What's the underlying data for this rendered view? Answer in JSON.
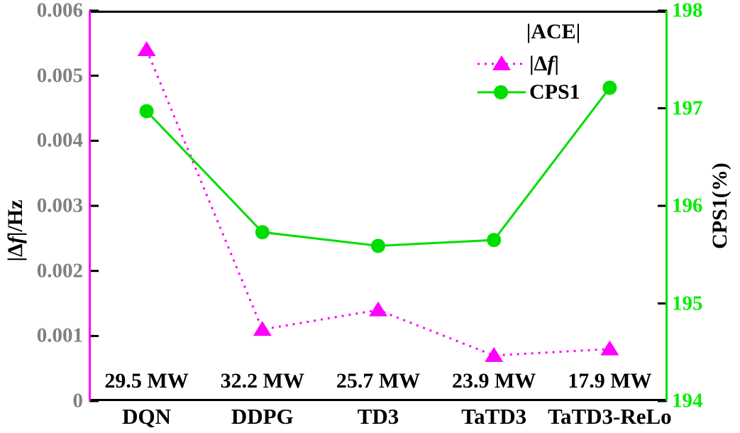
{
  "colors": {
    "magenta": "#ff00ff",
    "green_line": "#00dd00",
    "green_tick_text": "#00ee00",
    "gray_tick_text": "#808080",
    "black": "#000000",
    "background": "#ffffff"
  },
  "left_axis": {
    "title": {
      "pre": "|Δ",
      "italic": "f",
      "post": "|/Hz"
    },
    "min": 0,
    "max": 0.006,
    "tick_values": [
      0,
      0.001,
      0.002,
      0.003,
      0.004,
      0.005,
      0.006
    ],
    "tick_labels": [
      "0",
      "0.001",
      "0.002",
      "0.003",
      "0.004",
      "0.005",
      "0.006"
    ]
  },
  "right_axis": {
    "title": "CPS1(%)",
    "min": 194,
    "max": 198,
    "tick_values": [
      194,
      195,
      196,
      197,
      198
    ],
    "tick_labels": [
      "194",
      "195",
      "196",
      "197",
      "198"
    ]
  },
  "legend": {
    "title": "|ACE|",
    "entry_delta_f": {
      "pre": "|Δ",
      "italic": "f",
      "post": "|"
    },
    "entry_cps1": "CPS1"
  },
  "chart_data": {
    "type": "line",
    "title": "",
    "categories": [
      "DQN",
      "DDPG",
      "TD3",
      "TaTD3",
      "TaTD3-ReLo"
    ],
    "series": [
      {
        "name": "|Δf|",
        "axis": "left",
        "values": [
          0.0054,
          0.0011,
          0.0014,
          0.0007,
          0.0008
        ],
        "color": "#ff00ff",
        "marker": "triangle",
        "line_style": "dotted"
      },
      {
        "name": "CPS1",
        "axis": "right",
        "values": [
          196.97,
          195.73,
          195.59,
          195.65,
          197.21
        ],
        "color": "#00dd00",
        "marker": "circle",
        "line_style": "solid"
      }
    ],
    "annotations": [
      "29.5 MW",
      "32.2 MW",
      "25.7 MW",
      "23.9 MW",
      "17.9 MW"
    ],
    "left_ylabel": "|Δf|/Hz",
    "right_ylabel": "CPS1(%)",
    "left_ylim": [
      0,
      0.006
    ],
    "right_ylim": [
      194,
      198
    ],
    "legend_title": "|ACE|",
    "legend_position": "top-right-inside",
    "grid": false
  }
}
